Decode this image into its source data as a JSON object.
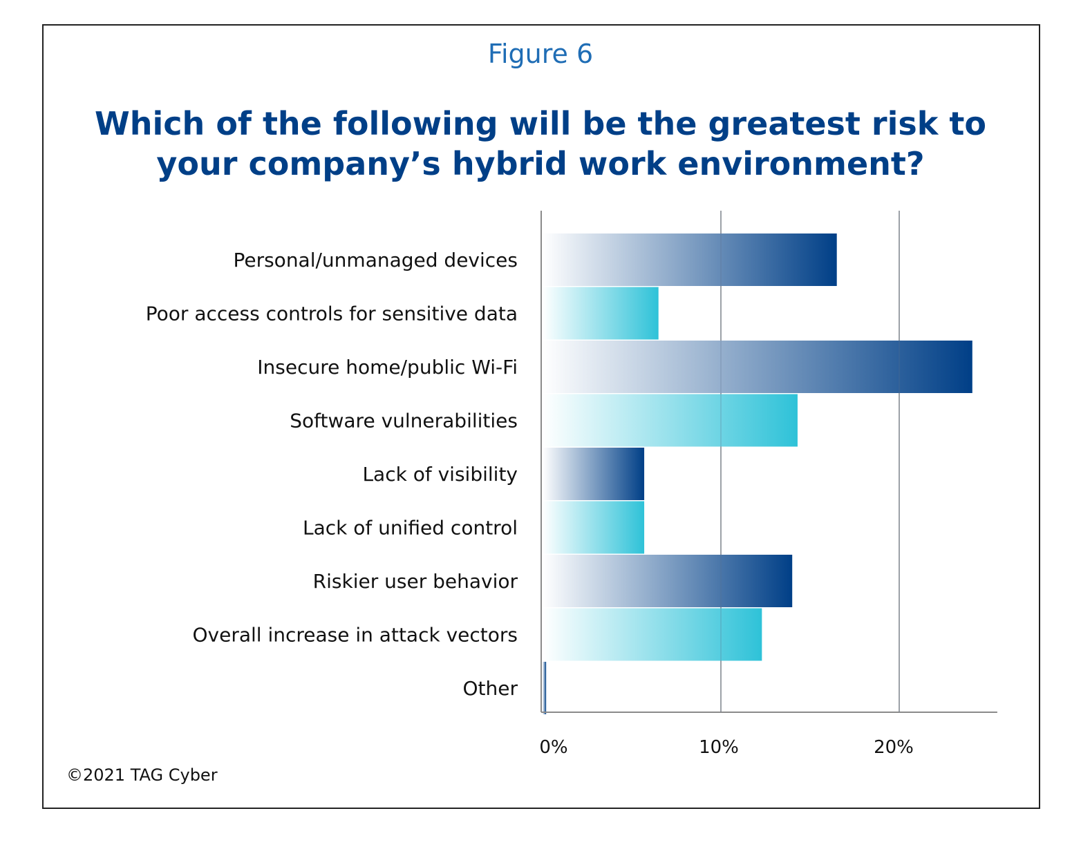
{
  "figure_label": "Figure 6",
  "title_lines": [
    "Which of the following will be the greatest risk to",
    "your company’s hybrid work environment?"
  ],
  "copyright": "©2021 TAG Cyber",
  "colors": {
    "dark_bar": "#003f87",
    "light_bar": "#2ec2d8",
    "title": "#003f87",
    "figure_label": "#1f6db5"
  },
  "chart_data": {
    "type": "bar",
    "orientation": "horizontal",
    "categories": [
      "Personal/unmanaged devices",
      "Poor access controls for sensitive data",
      "Insecure home/public Wi-Fi",
      "Software vulnerabilities",
      "Lack of visibility",
      "Lack of unified control",
      "Riskier user behavior",
      "Overall increase in attack vectors",
      "Other"
    ],
    "values": [
      16.5,
      6.5,
      24.1,
      14.3,
      5.7,
      5.7,
      14.0,
      12.3,
      0.2
    ],
    "bar_colors": [
      "dark",
      "light",
      "dark",
      "light",
      "dark",
      "light",
      "dark",
      "light",
      "dark"
    ],
    "xlim": [
      0,
      25.5
    ],
    "xticks": [
      0,
      10,
      20
    ],
    "xtick_labels": [
      "0%",
      "10%",
      "20%"
    ],
    "grid": true,
    "title": "Which of the following will be the greatest risk to your company’s hybrid work environment?"
  }
}
